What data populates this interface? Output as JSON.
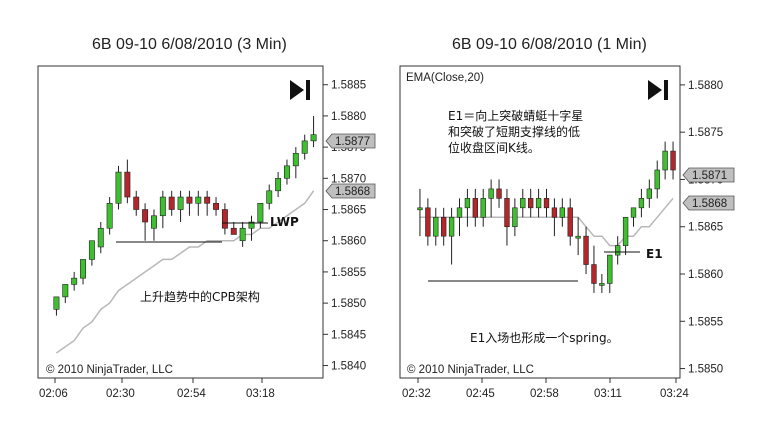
{
  "panels": [
    {
      "title": "6B 09-10  6/08/2010 (3 Min)",
      "indicator": "",
      "copyright": "© 2010 NinjaTrader, LLC",
      "price_tags": [
        "1.5877",
        "1.5868"
      ],
      "annotations": {
        "lwp_label": "LWP",
        "note": "上升趋势中的CPB架构"
      },
      "colors": {
        "up": "#3fbf2f",
        "down": "#b3262b",
        "ema": "#b8b8b8",
        "tag": "#bfbfbf"
      }
    },
    {
      "title": "6B 09-10  6/08/2010 (1 Min)",
      "indicator": "EMA(Close,20)",
      "copyright": "© 2010 NinjaTrader, LLC",
      "price_tags": [
        "1.5871",
        "1.5868"
      ],
      "annotations": {
        "e1_note_lines": [
          "E1＝向上突破蜻蜓十字星",
          "和突破了短期支撑线的低",
          "位收盘区间K线。"
        ],
        "e1_label": "E1",
        "spring_note": "E1入场也形成一个spring。"
      },
      "colors": {
        "up": "#3fbf2f",
        "down": "#b3262b",
        "ema": "#b8b8b8",
        "tag": "#bfbfbf"
      }
    }
  ],
  "chart_data": [
    {
      "type": "candlestick",
      "title": "6B 09-10  6/08/2010 (3 Min)",
      "y_ticks": [
        "1.5885",
        "1.5880",
        "1.5875",
        "1.5870",
        "1.5865",
        "1.5860",
        "1.5855",
        "1.5850",
        "1.5845",
        "1.5840"
      ],
      "ylim": [
        1.5838,
        1.5888
      ],
      "x_ticks": [
        "02:06",
        "02:30",
        "02:54",
        "03:18"
      ],
      "candles": [
        [
          1.5849,
          1.5851,
          1.5848,
          1.5851
        ],
        [
          1.5851,
          1.5853,
          1.585,
          1.5853
        ],
        [
          1.5853,
          1.5855,
          1.5852,
          1.5854
        ],
        [
          1.5854,
          1.5857,
          1.5853,
          1.5857
        ],
        [
          1.5857,
          1.586,
          1.5856,
          1.586
        ],
        [
          1.5859,
          1.5863,
          1.5858,
          1.5862
        ],
        [
          1.5862,
          1.5867,
          1.5861,
          1.5866
        ],
        [
          1.5866,
          1.5872,
          1.5865,
          1.5871
        ],
        [
          1.5871,
          1.5873,
          1.5866,
          1.5867
        ],
        [
          1.5867,
          1.5868,
          1.5864,
          1.5865
        ],
        [
          1.5865,
          1.5866,
          1.586,
          1.5863
        ],
        [
          1.5862,
          1.5865,
          1.586,
          1.5864
        ],
        [
          1.5864,
          1.5868,
          1.5862,
          1.5867
        ],
        [
          1.5867,
          1.5868,
          1.5864,
          1.5865
        ],
        [
          1.5865,
          1.5868,
          1.5863,
          1.5867
        ],
        [
          1.5867,
          1.5868,
          1.5864,
          1.5866
        ],
        [
          1.5866,
          1.5868,
          1.5864,
          1.5867
        ],
        [
          1.5867,
          1.5868,
          1.5864,
          1.5866
        ],
        [
          1.5866,
          1.5867,
          1.5864,
          1.5865
        ],
        [
          1.5865,
          1.5866,
          1.5861,
          1.5862
        ],
        [
          1.5862,
          1.5863,
          1.5861,
          1.5861
        ],
        [
          1.586,
          1.5863,
          1.5859,
          1.5862
        ],
        [
          1.5862,
          1.5864,
          1.586,
          1.5863
        ],
        [
          1.5863,
          1.5866,
          1.5862,
          1.5866
        ],
        [
          1.5866,
          1.5869,
          1.5865,
          1.5868
        ],
        [
          1.5868,
          1.5871,
          1.5867,
          1.587
        ],
        [
          1.587,
          1.5873,
          1.5869,
          1.5872
        ],
        [
          1.5872,
          1.5875,
          1.587,
          1.5874
        ],
        [
          1.5874,
          1.5877,
          1.5873,
          1.5876
        ],
        [
          1.5876,
          1.588,
          1.5875,
          1.5877
        ]
      ],
      "ema": [
        1.5842,
        1.5843,
        1.5844,
        1.5846,
        1.5847,
        1.5849,
        1.585,
        1.5852,
        1.5853,
        1.5854,
        1.5855,
        1.5856,
        1.5857,
        1.5857,
        1.5858,
        1.5859,
        1.5859,
        1.586,
        1.586,
        1.586,
        1.586,
        1.5861,
        1.5861,
        1.5862,
        1.5862,
        1.5863,
        1.5864,
        1.5865,
        1.5866,
        1.5868
      ],
      "support_line": 1.5861
    },
    {
      "type": "candlestick",
      "title": "6B 09-10  6/08/2010 (1 Min)",
      "y_ticks": [
        "1.5880",
        "1.5875",
        "1.5870",
        "1.5865",
        "1.5860",
        "1.5855",
        "1.5850"
      ],
      "ylim": [
        1.5849,
        1.5882
      ],
      "x_ticks": [
        "02:32",
        "02:45",
        "02:58",
        "03:11",
        "03:24"
      ],
      "candles": [
        [
          1.5867,
          1.5869,
          1.5864,
          1.5867
        ],
        [
          1.5867,
          1.5868,
          1.5863,
          1.5864
        ],
        [
          1.5864,
          1.5867,
          1.5863,
          1.5866
        ],
        [
          1.5866,
          1.5867,
          1.5863,
          1.5864
        ],
        [
          1.5864,
          1.5867,
          1.5861,
          1.5866
        ],
        [
          1.5866,
          1.5868,
          1.5864,
          1.5867
        ],
        [
          1.5867,
          1.5869,
          1.5865,
          1.5868
        ],
        [
          1.5868,
          1.5869,
          1.5865,
          1.5866
        ],
        [
          1.5866,
          1.5869,
          1.5865,
          1.5868
        ],
        [
          1.5868,
          1.587,
          1.5866,
          1.5869
        ],
        [
          1.5869,
          1.587,
          1.5867,
          1.5868
        ],
        [
          1.5868,
          1.5869,
          1.5863,
          1.5865
        ],
        [
          1.5865,
          1.5868,
          1.5864,
          1.5867
        ],
        [
          1.5867,
          1.5869,
          1.5866,
          1.5868
        ],
        [
          1.5868,
          1.5869,
          1.5866,
          1.5867
        ],
        [
          1.5867,
          1.5869,
          1.5866,
          1.5868
        ],
        [
          1.5868,
          1.5869,
          1.5866,
          1.5867
        ],
        [
          1.5867,
          1.5868,
          1.5864,
          1.5866
        ],
        [
          1.5866,
          1.5868,
          1.5865,
          1.5867
        ],
        [
          1.5867,
          1.5868,
          1.5863,
          1.5864
        ],
        [
          1.5864,
          1.5866,
          1.5862,
          1.5864
        ],
        [
          1.5864,
          1.5865,
          1.586,
          1.5861
        ],
        [
          1.5861,
          1.5863,
          1.5858,
          1.5859
        ],
        [
          1.5859,
          1.586,
          1.5858,
          1.5859
        ],
        [
          1.5859,
          1.5862,
          1.5858,
          1.5862
        ],
        [
          1.5862,
          1.5864,
          1.5861,
          1.5863
        ],
        [
          1.5863,
          1.5866,
          1.5862,
          1.5866
        ],
        [
          1.5866,
          1.5867,
          1.5865,
          1.5867
        ],
        [
          1.5867,
          1.5869,
          1.5866,
          1.5868
        ],
        [
          1.5868,
          1.587,
          1.5867,
          1.5869
        ],
        [
          1.5869,
          1.5872,
          1.5868,
          1.5871
        ],
        [
          1.5871,
          1.5874,
          1.587,
          1.5873
        ],
        [
          1.5873,
          1.5874,
          1.587,
          1.5871
        ]
      ],
      "ema": [
        1.5866,
        1.5866,
        1.5866,
        1.5866,
        1.5866,
        1.5866,
        1.5866,
        1.5866,
        1.5866,
        1.5866,
        1.5866,
        1.5866,
        1.5866,
        1.5866,
        1.5866,
        1.5866,
        1.5866,
        1.5866,
        1.5866,
        1.5866,
        1.5866,
        1.5865,
        1.5864,
        1.5864,
        1.5863,
        1.5863,
        1.5864,
        1.5864,
        1.5865,
        1.5865,
        1.5866,
        1.5867,
        1.5868
      ],
      "support_line": 1.586,
      "e1_line": 1.5863
    }
  ]
}
